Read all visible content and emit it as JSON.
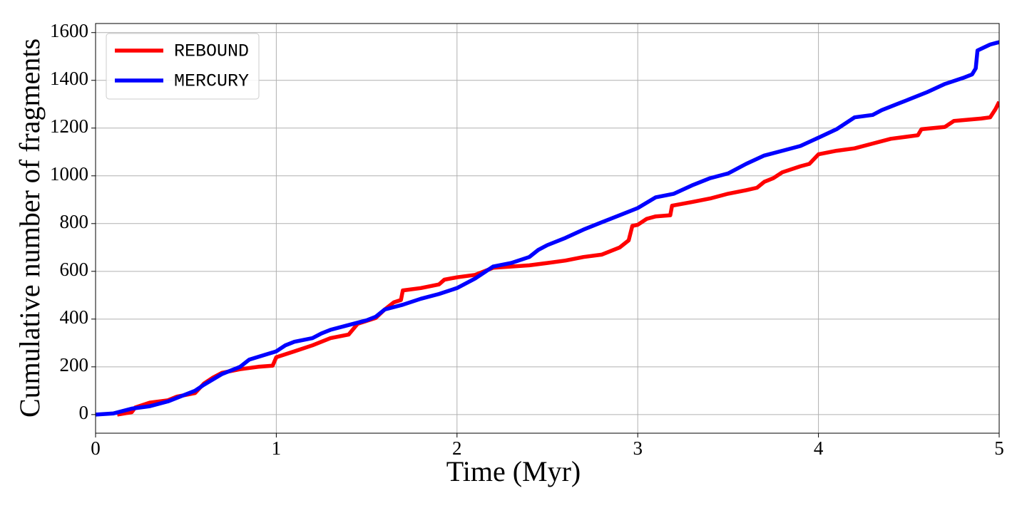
{
  "chart_data": {
    "type": "line",
    "xlabel": "Time (Myr)",
    "ylabel": "Cumulative number of fragments",
    "xlim": [
      0,
      5
    ],
    "xticks": [
      0,
      1,
      2,
      3,
      4,
      5
    ],
    "ylim": [
      -78,
      1638
    ],
    "yticks": [
      0,
      200,
      400,
      600,
      800,
      1000,
      1200,
      1400,
      1600
    ],
    "grid": true,
    "legend": "upper left",
    "series": [
      {
        "name": "REBOUND",
        "color": "#ff0000",
        "x": [
          0.12,
          0.2,
          0.22,
          0.3,
          0.4,
          0.45,
          0.55,
          0.6,
          0.65,
          0.7,
          0.8,
          0.9,
          0.98,
          1.0,
          1.1,
          1.2,
          1.3,
          1.4,
          1.45,
          1.55,
          1.6,
          1.65,
          1.69,
          1.7,
          1.8,
          1.9,
          1.93,
          2.0,
          2.1,
          2.2,
          2.3,
          2.4,
          2.5,
          2.6,
          2.7,
          2.8,
          2.9,
          2.95,
          2.97,
          3.0,
          3.05,
          3.1,
          3.18,
          3.19,
          3.3,
          3.4,
          3.5,
          3.6,
          3.66,
          3.7,
          3.75,
          3.8,
          3.9,
          3.95,
          4.0,
          4.1,
          4.2,
          4.3,
          4.4,
          4.5,
          4.55,
          4.57,
          4.7,
          4.75,
          4.9,
          4.95,
          4.98,
          5.0
        ],
        "values": [
          0,
          10,
          30,
          50,
          60,
          75,
          90,
          130,
          155,
          175,
          190,
          200,
          205,
          240,
          265,
          290,
          320,
          335,
          380,
          405,
          440,
          470,
          480,
          520,
          530,
          545,
          565,
          575,
          585,
          615,
          620,
          625,
          635,
          645,
          660,
          670,
          700,
          730,
          790,
          795,
          820,
          830,
          835,
          875,
          890,
          905,
          925,
          940,
          950,
          975,
          990,
          1015,
          1040,
          1050,
          1090,
          1105,
          1115,
          1135,
          1155,
          1165,
          1170,
          1195,
          1205,
          1230,
          1240,
          1245,
          1280,
          1310
        ]
      },
      {
        "name": "MERCURY",
        "color": "#0000ff",
        "x": [
          0,
          0.1,
          0.2,
          0.3,
          0.4,
          0.5,
          0.55,
          0.6,
          0.7,
          0.8,
          0.85,
          1.0,
          1.05,
          1.1,
          1.2,
          1.25,
          1.3,
          1.4,
          1.5,
          1.55,
          1.6,
          1.7,
          1.8,
          1.9,
          2.0,
          2.1,
          2.2,
          2.3,
          2.4,
          2.45,
          2.5,
          2.6,
          2.7,
          2.8,
          2.9,
          3.0,
          3.1,
          3.2,
          3.3,
          3.4,
          3.5,
          3.6,
          3.7,
          3.8,
          3.9,
          4.0,
          4.1,
          4.15,
          4.2,
          4.3,
          4.35,
          4.45,
          4.5,
          4.6,
          4.7,
          4.8,
          4.85,
          4.87,
          4.88,
          4.95,
          5.0
        ],
        "values": [
          0,
          5,
          25,
          35,
          55,
          85,
          100,
          125,
          170,
          200,
          230,
          265,
          290,
          305,
          320,
          340,
          355,
          375,
          395,
          410,
          440,
          460,
          485,
          505,
          530,
          570,
          620,
          635,
          660,
          690,
          710,
          740,
          775,
          805,
          835,
          865,
          910,
          925,
          960,
          990,
          1010,
          1050,
          1085,
          1105,
          1125,
          1160,
          1195,
          1220,
          1245,
          1255,
          1275,
          1305,
          1320,
          1350,
          1385,
          1410,
          1425,
          1450,
          1525,
          1550,
          1560
        ]
      }
    ]
  }
}
